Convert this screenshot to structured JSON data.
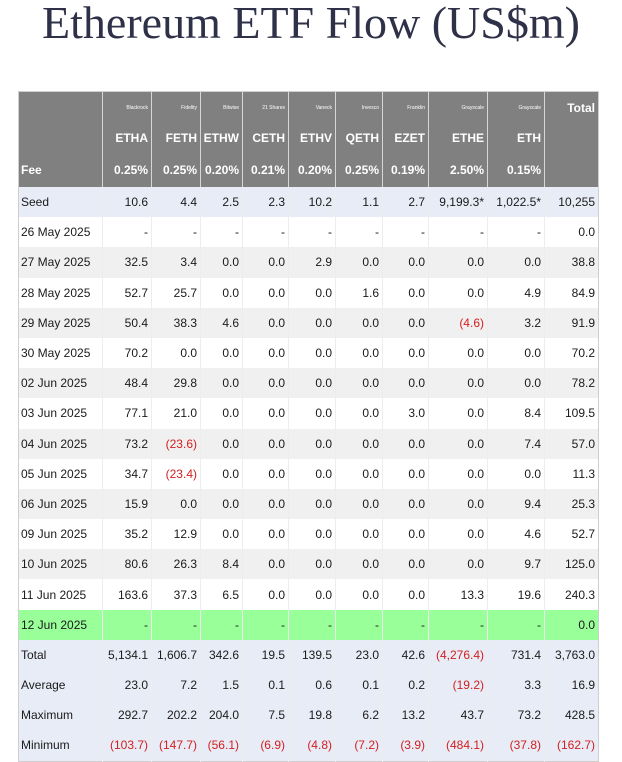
{
  "title": "Ethereum ETF Flow (US$m)",
  "table": {
    "issuers": [
      "",
      "Blackrock",
      "Fidelity",
      "Bitwise",
      "21 Shares",
      "Vaneck",
      "Invesco",
      "Franklin",
      "Grayscale",
      "Grayscale",
      "Total"
    ],
    "tickers": [
      "",
      "ETHA",
      "FETH",
      "ETHW",
      "CETH",
      "ETHV",
      "QETH",
      "EZET",
      "ETHE",
      "ETH",
      ""
    ],
    "fees": [
      "Fee",
      "0.25%",
      "0.25%",
      "0.20%",
      "0.21%",
      "0.20%",
      "0.25%",
      "0.19%",
      "2.50%",
      "0.15%",
      ""
    ],
    "rows": [
      {
        "style": "seed",
        "cells": [
          "Seed",
          "10.6",
          "4.4",
          "2.5",
          "2.3",
          "10.2",
          "1.1",
          "2.7",
          "9,199.3*",
          "1,022.5*",
          "10,255"
        ]
      },
      {
        "style": "plain",
        "cells": [
          "26 May 2025",
          "-",
          "-",
          "-",
          "-",
          "-",
          "-",
          "-",
          "-",
          "-",
          "0.0"
        ]
      },
      {
        "style": "alt",
        "cells": [
          "27 May 2025",
          "32.5",
          "3.4",
          "0.0",
          "0.0",
          "2.9",
          "0.0",
          "0.0",
          "0.0",
          "0.0",
          "38.8"
        ]
      },
      {
        "style": "plain",
        "cells": [
          "28 May 2025",
          "52.7",
          "25.7",
          "0.0",
          "0.0",
          "0.0",
          "1.6",
          "0.0",
          "0.0",
          "4.9",
          "84.9"
        ]
      },
      {
        "style": "alt",
        "cells": [
          "29 May 2025",
          "50.4",
          "38.3",
          "4.6",
          "0.0",
          "0.0",
          "0.0",
          "0.0",
          "(4.6)",
          "3.2",
          "91.9"
        ]
      },
      {
        "style": "plain",
        "cells": [
          "30 May 2025",
          "70.2",
          "0.0",
          "0.0",
          "0.0",
          "0.0",
          "0.0",
          "0.0",
          "0.0",
          "0.0",
          "70.2"
        ]
      },
      {
        "style": "alt",
        "cells": [
          "02 Jun 2025",
          "48.4",
          "29.8",
          "0.0",
          "0.0",
          "0.0",
          "0.0",
          "0.0",
          "0.0",
          "0.0",
          "78.2"
        ]
      },
      {
        "style": "plain",
        "cells": [
          "03 Jun 2025",
          "77.1",
          "21.0",
          "0.0",
          "0.0",
          "0.0",
          "0.0",
          "3.0",
          "0.0",
          "8.4",
          "109.5"
        ]
      },
      {
        "style": "alt",
        "cells": [
          "04 Jun 2025",
          "73.2",
          "(23.6)",
          "0.0",
          "0.0",
          "0.0",
          "0.0",
          "0.0",
          "0.0",
          "7.4",
          "57.0"
        ]
      },
      {
        "style": "plain",
        "cells": [
          "05 Jun 2025",
          "34.7",
          "(23.4)",
          "0.0",
          "0.0",
          "0.0",
          "0.0",
          "0.0",
          "0.0",
          "0.0",
          "11.3"
        ]
      },
      {
        "style": "alt",
        "cells": [
          "06 Jun 2025",
          "15.9",
          "0.0",
          "0.0",
          "0.0",
          "0.0",
          "0.0",
          "0.0",
          "0.0",
          "9.4",
          "25.3"
        ]
      },
      {
        "style": "plain",
        "cells": [
          "09 Jun 2025",
          "35.2",
          "12.9",
          "0.0",
          "0.0",
          "0.0",
          "0.0",
          "0.0",
          "0.0",
          "4.6",
          "52.7"
        ]
      },
      {
        "style": "alt",
        "cells": [
          "10 Jun 2025",
          "80.6",
          "26.3",
          "8.4",
          "0.0",
          "0.0",
          "0.0",
          "0.0",
          "0.0",
          "9.7",
          "125.0"
        ]
      },
      {
        "style": "plain",
        "cells": [
          "11 Jun 2025",
          "163.6",
          "37.3",
          "6.5",
          "0.0",
          "0.0",
          "0.0",
          "0.0",
          "13.3",
          "19.6",
          "240.3"
        ]
      },
      {
        "style": "highlight",
        "cells": [
          "12 Jun 2025",
          "-",
          "-",
          "-",
          "-",
          "-",
          "-",
          "-",
          "-",
          "-",
          "0.0"
        ]
      },
      {
        "style": "summary",
        "cells": [
          "Total",
          "5,134.1",
          "1,606.7",
          "342.6",
          "19.5",
          "139.5",
          "23.0",
          "42.6",
          "(4,276.4)",
          "731.4",
          "3,763.0"
        ]
      },
      {
        "style": "summary",
        "cells": [
          "Average",
          "23.0",
          "7.2",
          "1.5",
          "0.1",
          "0.6",
          "0.1",
          "0.2",
          "(19.2)",
          "3.3",
          "16.9"
        ]
      },
      {
        "style": "summary",
        "cells": [
          "Maximum",
          "292.7",
          "202.2",
          "204.0",
          "7.5",
          "19.8",
          "6.2",
          "13.2",
          "43.7",
          "73.2",
          "428.5"
        ]
      },
      {
        "style": "summary",
        "cells": [
          "Minimum",
          "(103.7)",
          "(147.7)",
          "(56.1)",
          "(6.9)",
          "(4.8)",
          "(7.2)",
          "(3.9)",
          "(484.1)",
          "(37.8)",
          "(162.7)"
        ]
      }
    ]
  },
  "colors": {
    "header_bg": "#808080",
    "negative_text": "#d21f1f",
    "highlight_row": "#99ff99",
    "summary_row": "#e8ecf6",
    "title_text": "#2e3148"
  }
}
